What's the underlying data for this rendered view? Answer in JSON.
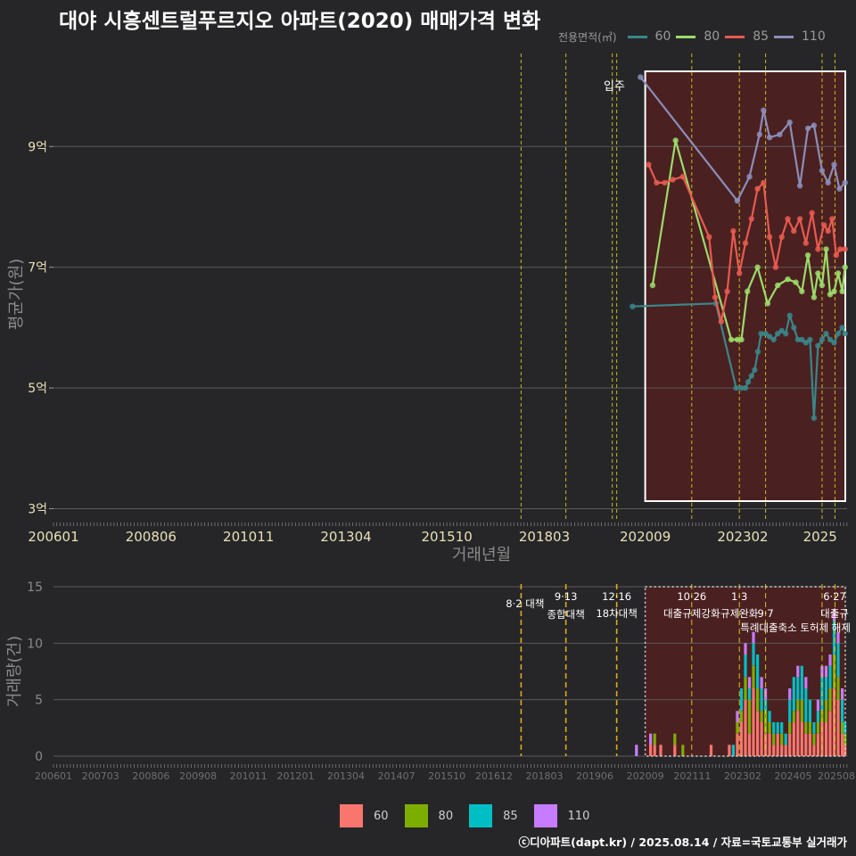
{
  "title": "대야 시흥센트럴푸르지오 아파트(2020) 매매가격 변화",
  "credit": "ⓒ디아파트(dapt.kr) / 2025.08.14 / 자료=국토교통부 실거래가",
  "colors": {
    "background": "#262628",
    "grid": "#5a5a5a",
    "policy_line": "#e6d21e",
    "highlight_fill": "#6a1c1c",
    "series_60": "#3a8688",
    "series_80": "#9bdc6a",
    "series_85": "#e85a4f",
    "series_110": "#8a8eb8",
    "bar_60": "#f8766d",
    "bar_80": "#7cae00",
    "bar_85": "#00bfc4",
    "bar_110": "#c77cff"
  },
  "legend": {
    "title": "전용면적(㎡)",
    "items": [
      {
        "label": "60",
        "color": "#3a8688",
        "bar_color": "#f8766d"
      },
      {
        "label": "80",
        "color": "#9bdc6a",
        "bar_color": "#7cae00"
      },
      {
        "label": "85",
        "color": "#e85a4f",
        "bar_color": "#00bfc4"
      },
      {
        "label": "110",
        "color": "#8a8eb8",
        "bar_color": "#c77cff"
      }
    ]
  },
  "chart_data": [
    {
      "type": "line",
      "title": "대야 시흥센트럴푸르지오 아파트(2020) 매매가격 변화",
      "xlabel": "거래년월",
      "ylabel": "평균가(원)",
      "x_range": [
        2006.0,
        2025.67
      ],
      "ylim": [
        2.8,
        10.6
      ],
      "x_ticks": [
        "200601",
        "200806",
        "201011",
        "201304",
        "201510",
        "201803",
        "202009",
        "202302",
        "2025"
      ],
      "y_ticks": [
        {
          "value": 3,
          "label": "3억"
        },
        {
          "value": 5,
          "label": "5억"
        },
        {
          "value": 7,
          "label": "7억"
        },
        {
          "value": 9,
          "label": "9억"
        }
      ],
      "annotation": {
        "label": "입주",
        "x": 2019.9
      },
      "highlight_range": [
        2020.6,
        2025.75
      ],
      "policy_lines": [
        2017.59,
        2018.7,
        2019.96,
        2019.85,
        2021.82,
        2023.0,
        2023.65,
        2025.05,
        2025.37
      ],
      "series": [
        {
          "name": "60",
          "points": [
            [
              2020.35,
              6.35
            ],
            [
              2022.42,
              6.4
            ],
            [
              2022.92,
              5.0
            ],
            [
              2023.05,
              5.0
            ],
            [
              2023.15,
              5.0
            ],
            [
              2023.22,
              5.1
            ],
            [
              2023.3,
              5.2
            ],
            [
              2023.38,
              5.3
            ],
            [
              2023.46,
              5.6
            ],
            [
              2023.54,
              5.9
            ],
            [
              2023.65,
              5.9
            ],
            [
              2023.75,
              5.85
            ],
            [
              2023.85,
              5.8
            ],
            [
              2023.95,
              5.9
            ],
            [
              2024.05,
              5.95
            ],
            [
              2024.15,
              5.9
            ],
            [
              2024.25,
              6.2
            ],
            [
              2024.35,
              6.0
            ],
            [
              2024.45,
              5.8
            ],
            [
              2024.55,
              5.8
            ],
            [
              2024.65,
              5.75
            ],
            [
              2024.75,
              5.8
            ],
            [
              2024.85,
              4.5
            ],
            [
              2024.95,
              5.7
            ],
            [
              2025.05,
              5.8
            ],
            [
              2025.15,
              5.9
            ],
            [
              2025.25,
              5.8
            ],
            [
              2025.35,
              5.75
            ],
            [
              2025.45,
              5.9
            ],
            [
              2025.55,
              6.0
            ],
            [
              2025.62,
              5.9
            ]
          ]
        },
        {
          "name": "80",
          "points": [
            [
              2020.85,
              6.7
            ],
            [
              2021.42,
              9.1
            ],
            [
              2022.8,
              5.8
            ],
            [
              2022.95,
              5.8
            ],
            [
              2023.05,
              5.8
            ],
            [
              2023.2,
              6.6
            ],
            [
              2023.45,
              7.0
            ],
            [
              2023.7,
              6.4
            ],
            [
              2023.95,
              6.7
            ],
            [
              2024.2,
              6.8
            ],
            [
              2024.4,
              6.75
            ],
            [
              2024.55,
              6.6
            ],
            [
              2024.7,
              7.2
            ],
            [
              2024.85,
              6.5
            ],
            [
              2024.95,
              6.9
            ],
            [
              2025.05,
              6.7
            ],
            [
              2025.15,
              7.3
            ],
            [
              2025.25,
              6.55
            ],
            [
              2025.35,
              6.6
            ],
            [
              2025.45,
              6.9
            ],
            [
              2025.55,
              6.6
            ],
            [
              2025.62,
              7.0
            ]
          ]
        },
        {
          "name": "85",
          "points": [
            [
              2020.75,
              8.7
            ],
            [
              2020.95,
              8.4
            ],
            [
              2021.15,
              8.4
            ],
            [
              2021.35,
              8.45
            ],
            [
              2021.6,
              8.5
            ],
            [
              2022.25,
              7.5
            ],
            [
              2022.4,
              6.5
            ],
            [
              2022.55,
              6.1
            ],
            [
              2022.7,
              6.6
            ],
            [
              2022.85,
              7.6
            ],
            [
              2023.0,
              6.9
            ],
            [
              2023.15,
              7.4
            ],
            [
              2023.3,
              7.8
            ],
            [
              2023.45,
              8.3
            ],
            [
              2023.6,
              8.4
            ],
            [
              2023.75,
              7.5
            ],
            [
              2023.9,
              7.0
            ],
            [
              2024.05,
              7.5
            ],
            [
              2024.2,
              7.8
            ],
            [
              2024.35,
              7.6
            ],
            [
              2024.5,
              7.8
            ],
            [
              2024.65,
              7.4
            ],
            [
              2024.8,
              7.9
            ],
            [
              2024.95,
              7.3
            ],
            [
              2025.1,
              7.7
            ],
            [
              2025.2,
              7.6
            ],
            [
              2025.3,
              7.8
            ],
            [
              2025.4,
              7.2
            ],
            [
              2025.5,
              7.3
            ],
            [
              2025.62,
              7.3
            ]
          ]
        },
        {
          "name": "110",
          "points": [
            [
              2020.55,
              10.15
            ],
            [
              2022.95,
              8.1
            ],
            [
              2023.25,
              8.5
            ],
            [
              2023.5,
              9.2
            ],
            [
              2023.6,
              9.6
            ],
            [
              2023.75,
              9.15
            ],
            [
              2024.0,
              9.2
            ],
            [
              2024.25,
              9.4
            ],
            [
              2024.5,
              8.35
            ],
            [
              2024.7,
              9.3
            ],
            [
              2024.85,
              9.35
            ],
            [
              2025.05,
              8.6
            ],
            [
              2025.2,
              8.4
            ],
            [
              2025.35,
              8.7
            ],
            [
              2025.48,
              8.3
            ],
            [
              2025.62,
              8.4
            ]
          ]
        }
      ]
    },
    {
      "type": "bar",
      "stacked": true,
      "xlabel": "",
      "ylabel": "거래량(건)",
      "x_range": [
        2006.0,
        2025.67
      ],
      "ylim": [
        0,
        15
      ],
      "x_ticks": [
        "200601",
        "200703",
        "200806",
        "200908",
        "201011",
        "201201",
        "201304",
        "201407",
        "201510",
        "201612",
        "201803",
        "201906",
        "202009",
        "202111",
        "202302",
        "202405",
        "202508"
      ],
      "y_ticks": [
        0,
        5,
        10,
        15
      ],
      "highlight_range": [
        2020.6,
        2025.75
      ],
      "policy_lines": [
        {
          "x": 2017.59,
          "date": "",
          "text": "8·2 대책"
        },
        {
          "x": 2018.7,
          "date": "9·13",
          "text": "종합대책"
        },
        {
          "x": 2019.96,
          "date": "12·16",
          "text": "18차대책"
        },
        {
          "x": 2021.82,
          "date": "10·26",
          "text": "대출규제강화"
        },
        {
          "x": 2023.0,
          "date": "1·3",
          "text": "규제완화"
        },
        {
          "x": 2023.65,
          "date": "",
          "text": "9·7"
        },
        {
          "x": 2025.05,
          "date": "",
          "text": "특례대출축소 토허제 해제"
        },
        {
          "x": 2025.37,
          "date": "6·27",
          "text": "대출규"
        }
      ],
      "policy_upper_text": "특례대출축소 토허제 해제",
      "series_names": [
        "60",
        "80",
        "85",
        "110"
      ],
      "bars": [
        {
          "x": 2020.45,
          "values": [
            0,
            0,
            0,
            1
          ]
        },
        {
          "x": 2020.8,
          "values": [
            1,
            0,
            0,
            1
          ]
        },
        {
          "x": 2020.9,
          "values": [
            1,
            1,
            0,
            0
          ]
        },
        {
          "x": 2021.05,
          "values": [
            1,
            0,
            0,
            0
          ]
        },
        {
          "x": 2021.4,
          "values": [
            1,
            1,
            0,
            0
          ]
        },
        {
          "x": 2021.6,
          "values": [
            0,
            1,
            0,
            0
          ]
        },
        {
          "x": 2022.3,
          "values": [
            1,
            0,
            0,
            0
          ]
        },
        {
          "x": 2022.75,
          "values": [
            1,
            0,
            0,
            0
          ]
        },
        {
          "x": 2022.85,
          "values": [
            0,
            0,
            1,
            0
          ]
        },
        {
          "x": 2022.95,
          "values": [
            2,
            1,
            0,
            1
          ]
        },
        {
          "x": 2023.05,
          "values": [
            3,
            1,
            2,
            0
          ]
        },
        {
          "x": 2023.15,
          "values": [
            5,
            2,
            2,
            1
          ]
        },
        {
          "x": 2023.25,
          "values": [
            2,
            3,
            1,
            1
          ]
        },
        {
          "x": 2023.35,
          "values": [
            6,
            2,
            2,
            1
          ]
        },
        {
          "x": 2023.45,
          "values": [
            4,
            2,
            3,
            0
          ]
        },
        {
          "x": 2023.55,
          "values": [
            3,
            1,
            2,
            1
          ]
        },
        {
          "x": 2023.65,
          "values": [
            2,
            2,
            1,
            1
          ]
        },
        {
          "x": 2023.75,
          "values": [
            2,
            1,
            1,
            0
          ]
        },
        {
          "x": 2023.85,
          "values": [
            1,
            1,
            1,
            0
          ]
        },
        {
          "x": 2023.95,
          "values": [
            2,
            0,
            1,
            0
          ]
        },
        {
          "x": 2024.05,
          "values": [
            1,
            1,
            1,
            0
          ]
        },
        {
          "x": 2024.15,
          "values": [
            1,
            0,
            1,
            0
          ]
        },
        {
          "x": 2024.25,
          "values": [
            2,
            1,
            2,
            1
          ]
        },
        {
          "x": 2024.35,
          "values": [
            3,
            1,
            3,
            0
          ]
        },
        {
          "x": 2024.45,
          "values": [
            4,
            1,
            2,
            1
          ]
        },
        {
          "x": 2024.55,
          "values": [
            3,
            2,
            3,
            0
          ]
        },
        {
          "x": 2024.65,
          "values": [
            2,
            1,
            3,
            1
          ]
        },
        {
          "x": 2024.75,
          "values": [
            2,
            1,
            2,
            0
          ]
        },
        {
          "x": 2024.85,
          "values": [
            1,
            1,
            1,
            0
          ]
        },
        {
          "x": 2024.95,
          "values": [
            2,
            1,
            1,
            1
          ]
        },
        {
          "x": 2025.05,
          "values": [
            3,
            1,
            3,
            1
          ]
        },
        {
          "x": 2025.15,
          "values": [
            3,
            2,
            2,
            1
          ]
        },
        {
          "x": 2025.25,
          "values": [
            4,
            2,
            2,
            1
          ]
        },
        {
          "x": 2025.35,
          "values": [
            6,
            3,
            3,
            1
          ]
        },
        {
          "x": 2025.45,
          "values": [
            5,
            2,
            3,
            1
          ]
        },
        {
          "x": 2025.55,
          "values": [
            2,
            1,
            2,
            1
          ]
        },
        {
          "x": 2025.62,
          "values": [
            1,
            1,
            1,
            0
          ]
        }
      ]
    }
  ]
}
